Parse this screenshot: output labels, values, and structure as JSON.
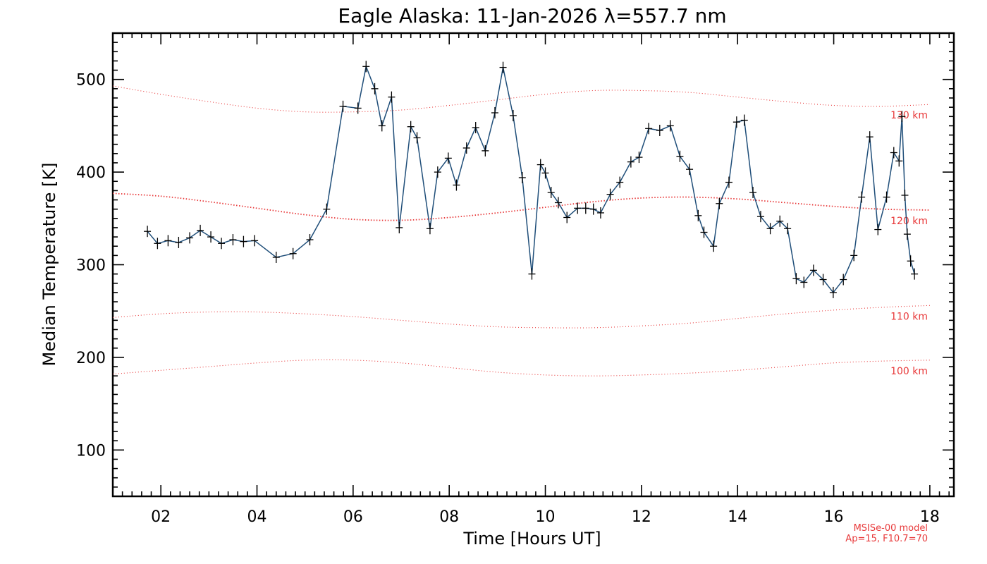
{
  "chart_data": {
    "type": "line",
    "title": "Eagle Alaska: 11-Jan-2026 λ=557.7 nm",
    "xlabel": "Time [Hours UT]",
    "ylabel": "Median Temperature [K]",
    "xlim": [
      1.0,
      18.5
    ],
    "ylim": [
      50,
      550
    ],
    "x_ticks": [
      2,
      4,
      6,
      8,
      10,
      12,
      14,
      16,
      18
    ],
    "x_tick_labels": [
      "02",
      "04",
      "06",
      "08",
      "10",
      "12",
      "14",
      "16",
      "18"
    ],
    "y_ticks": [
      100,
      200,
      300,
      400,
      500
    ],
    "y_tick_labels": [
      "100",
      "200",
      "300",
      "400",
      "500"
    ],
    "grid": false,
    "colors": {
      "data_line": "#1f4e79",
      "marker": "#000000",
      "model": "#e8393a"
    },
    "series": [
      {
        "x": [
          1.72,
          1.93,
          2.15,
          2.37,
          2.6,
          2.82,
          3.04,
          3.26,
          3.5,
          3.72,
          3.95,
          4.4,
          4.75,
          5.1,
          5.45,
          5.79,
          6.1,
          6.27,
          6.45,
          6.6,
          6.8,
          6.96,
          7.2,
          7.33,
          7.6,
          7.76,
          7.98,
          8.15,
          8.36,
          8.55,
          8.75,
          8.95,
          9.12,
          9.33,
          9.52,
          9.72,
          9.9,
          10.0,
          10.12,
          10.27,
          10.45,
          10.67,
          10.84,
          11.0,
          11.15,
          11.35,
          11.55,
          11.78,
          11.95,
          12.15,
          12.38,
          12.6,
          12.8,
          13.0,
          13.18,
          13.3,
          13.5,
          13.62,
          13.82,
          13.98,
          14.14,
          14.32,
          14.48,
          14.68,
          14.88,
          15.04,
          15.22,
          15.38,
          15.58,
          15.78,
          15.99,
          16.2,
          16.42,
          16.58,
          16.75,
          16.92,
          17.1,
          17.25,
          17.36,
          17.42,
          17.48,
          17.53,
          17.6,
          17.68
        ],
        "y": [
          336,
          323,
          326,
          324,
          329,
          337,
          330,
          323,
          327,
          325,
          326,
          308,
          312,
          327,
          360,
          471,
          469,
          514,
          490,
          450,
          481,
          340,
          449,
          437,
          339,
          400,
          415,
          386,
          426,
          448,
          423,
          464,
          513,
          461,
          394,
          290,
          408,
          399,
          378,
          367,
          351,
          361,
          361,
          360,
          356,
          376,
          389,
          411,
          416,
          447,
          445,
          450,
          417,
          403,
          353,
          335,
          320,
          366,
          389,
          454,
          456,
          378,
          352,
          339,
          347,
          339,
          285,
          281,
          294,
          284,
          270,
          284,
          310,
          373,
          438,
          338,
          373,
          421,
          412,
          460,
          375,
          333,
          304,
          290
        ],
        "marker": "+"
      }
    ],
    "model_curves": [
      {
        "label": "130 km",
        "x": [
          1,
          2,
          3,
          4,
          5,
          6,
          7,
          8,
          9,
          10,
          11,
          12,
          13,
          14,
          15,
          16,
          17,
          18
        ],
        "y": [
          493,
          484,
          476,
          469,
          465,
          465,
          467,
          472,
          478,
          484,
          488,
          488,
          486,
          481,
          476,
          472,
          471,
          473
        ]
      },
      {
        "label": "120 km",
        "x": [
          1,
          2,
          3,
          4,
          5,
          6,
          7,
          8,
          9,
          10,
          11,
          12,
          13,
          14,
          15,
          16,
          17,
          18
        ],
        "y": [
          377,
          374,
          368,
          361,
          354,
          349,
          348,
          351,
          356,
          362,
          368,
          372,
          373,
          371,
          367,
          363,
          360,
          359
        ]
      },
      {
        "label": "110 km",
        "x": [
          1,
          2,
          3,
          4,
          5,
          6,
          7,
          8,
          9,
          10,
          11,
          12,
          13,
          14,
          15,
          16,
          17,
          18
        ],
        "y": [
          243,
          247,
          249,
          249,
          247,
          244,
          240,
          236,
          233,
          232,
          232,
          234,
          237,
          242,
          247,
          251,
          254,
          256
        ]
      },
      {
        "label": "100 km",
        "x": [
          1,
          2,
          3,
          4,
          5,
          6,
          7,
          8,
          9,
          10,
          11,
          12,
          13,
          14,
          15,
          16,
          17,
          18
        ],
        "y": [
          182,
          186,
          190,
          194,
          197,
          197,
          194,
          189,
          184,
          181,
          180,
          181,
          183,
          186,
          190,
          194,
          196,
          197
        ]
      }
    ],
    "model_note_lines": [
      "MSISe-00 model",
      "Ap=15, F10.7=70"
    ]
  }
}
